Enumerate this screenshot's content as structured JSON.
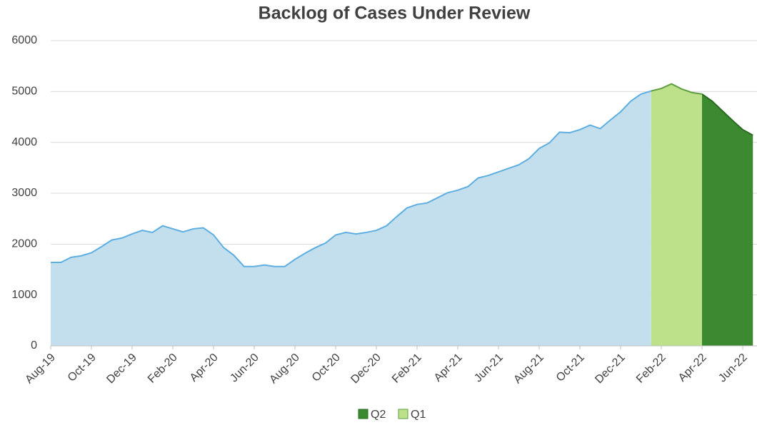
{
  "chart_data": {
    "type": "area",
    "title": "Backlog of Cases Under Review",
    "categories": [
      "Aug-19",
      null,
      null,
      null,
      "Oct-19",
      null,
      null,
      null,
      "Dec-19",
      null,
      null,
      null,
      "Feb-20",
      null,
      null,
      null,
      "Apr-20",
      null,
      null,
      null,
      "Jun-20",
      null,
      null,
      null,
      "Aug-20",
      null,
      null,
      null,
      "Oct-20",
      null,
      null,
      null,
      "Dec-20",
      null,
      null,
      null,
      "Feb-21",
      null,
      null,
      null,
      "Apr-21",
      null,
      null,
      null,
      "Jun-21",
      null,
      null,
      null,
      "Aug-21",
      null,
      null,
      null,
      "Oct-21",
      null,
      null,
      null,
      "Dec-21",
      null,
      null,
      null,
      "Feb-22",
      null,
      null,
      null,
      "Apr-22",
      null,
      null,
      null,
      "Jun-22",
      null
    ],
    "series": [
      {
        "color": "#c3dfee",
        "line_color": "#5eaee0",
        "values": [
          1640,
          1640,
          1740,
          1770,
          1830,
          1950,
          2080,
          2120,
          2200,
          2270,
          2230,
          2360,
          2300,
          2240,
          2300,
          2320,
          2180,
          1930,
          1780,
          1560,
          1560,
          1590,
          1560,
          1560,
          1700,
          1820,
          1930,
          2020,
          2180,
          2230,
          2200,
          2230,
          2270,
          2360,
          2540,
          2710,
          2780,
          2810,
          2910,
          3010,
          3060,
          3130,
          3300,
          3350,
          3420,
          3490,
          3560,
          3680,
          3880,
          3990,
          4200,
          4190,
          4250,
          4340,
          4270,
          4440,
          4600,
          4810,
          4950,
          5010,
          null,
          null,
          null,
          null,
          null,
          null,
          null,
          null,
          null,
          null
        ]
      },
      {
        "name": "Q2",
        "color": "#3b8a2f",
        "line_color": "#2a6a22",
        "values": [
          null,
          null,
          null,
          null,
          null,
          null,
          null,
          null,
          null,
          null,
          null,
          null,
          null,
          null,
          null,
          null,
          null,
          null,
          null,
          null,
          null,
          null,
          null,
          null,
          null,
          null,
          null,
          null,
          null,
          null,
          null,
          null,
          null,
          null,
          null,
          null,
          null,
          null,
          null,
          null,
          null,
          null,
          null,
          null,
          null,
          null,
          null,
          null,
          null,
          null,
          null,
          null,
          null,
          null,
          null,
          null,
          null,
          null,
          null,
          null,
          null,
          null,
          null,
          null,
          4950,
          4810,
          4620,
          4430,
          4250,
          4140
        ]
      },
      {
        "name": "Q1",
        "color": "#bde08b",
        "line_color": "#5f9e3e",
        "values": [
          null,
          null,
          null,
          null,
          null,
          null,
          null,
          null,
          null,
          null,
          null,
          null,
          null,
          null,
          null,
          null,
          null,
          null,
          null,
          null,
          null,
          null,
          null,
          null,
          null,
          null,
          null,
          null,
          null,
          null,
          null,
          null,
          null,
          null,
          null,
          null,
          null,
          null,
          null,
          null,
          null,
          null,
          null,
          null,
          null,
          null,
          null,
          null,
          null,
          null,
          null,
          null,
          null,
          null,
          null,
          null,
          null,
          null,
          null,
          5010,
          5060,
          5150,
          5050,
          4980,
          4950,
          null,
          null,
          null,
          null,
          null
        ]
      }
    ],
    "ylim": [
      0,
      6000
    ],
    "yticks": [
      0,
      1000,
      2000,
      3000,
      4000,
      5000,
      6000
    ],
    "grid": true,
    "legend": "bottom"
  }
}
